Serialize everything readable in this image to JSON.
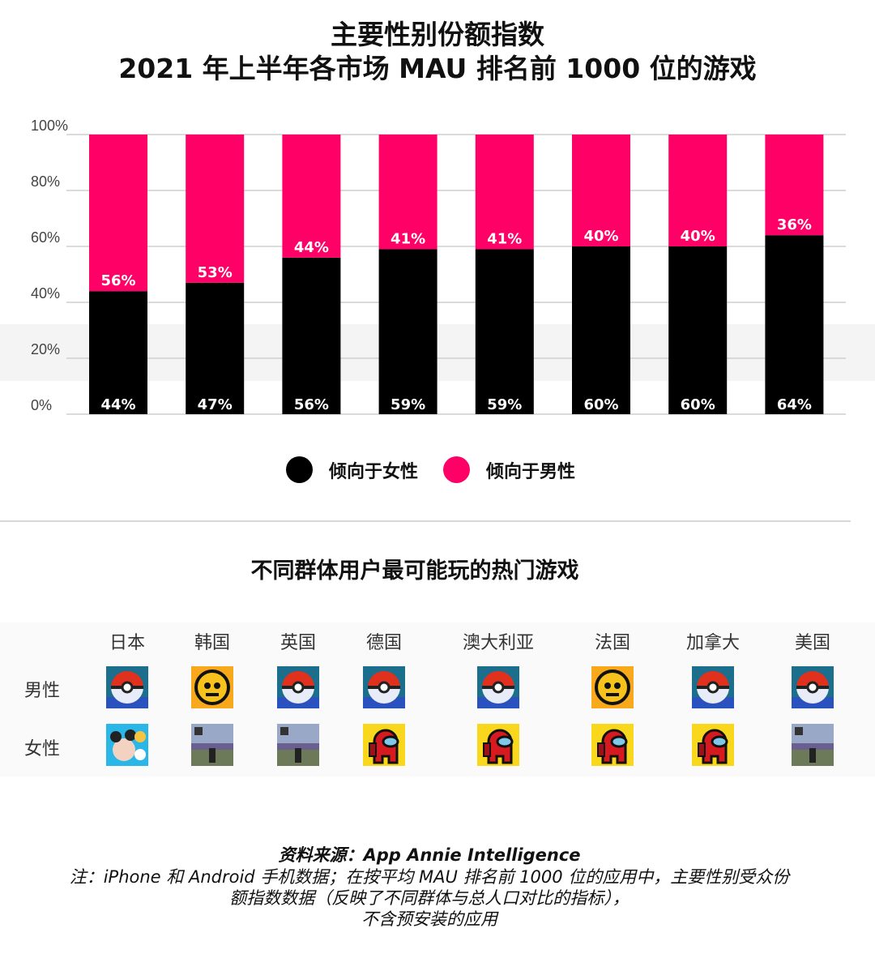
{
  "title": {
    "line1": "主要性别份额指数",
    "line2": "2021 年上半年各市场 MAU 排名前 1000 位的游戏"
  },
  "chart_data": {
    "type": "bar",
    "stacked": true,
    "percent": true,
    "ylim": [
      0,
      100
    ],
    "yticks": [
      "0%",
      "20%",
      "40%",
      "60%",
      "80%",
      "100%"
    ],
    "grid": true,
    "legend_position": "bottom",
    "series": [
      {
        "name": "倾向于女性",
        "color": "#000000",
        "values": [
          44,
          47,
          56,
          59,
          59,
          60,
          60,
          64
        ],
        "labels": [
          "44%",
          "47%",
          "56%",
          "59%",
          "59%",
          "60%",
          "60%",
          "64%"
        ]
      },
      {
        "name": "倾向于男性",
        "color": "#FF0066",
        "values": [
          56,
          53,
          44,
          41,
          41,
          40,
          40,
          36
        ],
        "labels": [
          "56%",
          "53%",
          "44%",
          "41%",
          "41%",
          "40%",
          "40%",
          "36%"
        ]
      }
    ]
  },
  "legend": {
    "female": "倾向于女性",
    "male": "倾向于男性"
  },
  "table": {
    "title": "不同群体用户最可能玩的热门游戏",
    "rows": [
      "男性",
      "女性"
    ],
    "columns": [
      "日本",
      "韩国",
      "英国",
      "德国",
      "澳大利亚",
      "法国",
      "加拿大",
      "美国"
    ],
    "male_icons": [
      "pokemon-go-icon",
      "brawl-stars-icon",
      "pokemon-go-icon",
      "pokemon-go-icon",
      "pokemon-go-icon",
      "brawl-stars-icon",
      "pokemon-go-icon",
      "pokemon-go-icon"
    ],
    "female_icons": [
      "tsum-tsum-icon",
      "roblox-icon",
      "roblox-icon",
      "among-us-icon",
      "among-us-icon",
      "among-us-icon",
      "among-us-icon",
      "roblox-icon"
    ]
  },
  "footer": {
    "source": "资料来源：App Annie Intelligence",
    "note1": "注：iPhone 和 Android 手机数据；在按平均 MAU 排名前 1000 位的应用中，主要性别受众份",
    "note2": "额指数数据（反映了不同群体与总人口对比的指标），",
    "note3": "不含预安装的应用"
  }
}
